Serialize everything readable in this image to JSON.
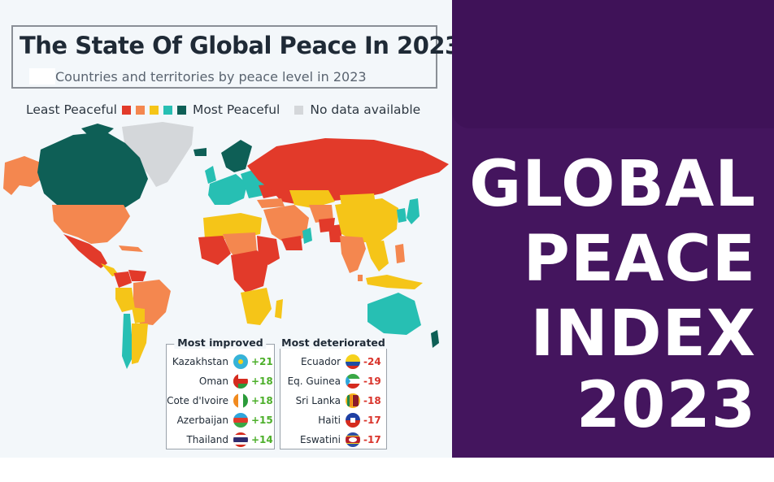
{
  "infographic": {
    "title": "The State Of Global Peace In 2023",
    "subtitle": "Countries and territories by peace level in 2023",
    "legend": {
      "least_label": "Least Peaceful",
      "most_label": "Most Peaceful",
      "no_data_label": "No data available",
      "scale_colors": [
        "#e23a2a",
        "#f4874f",
        "#f5c518",
        "#27bfb3",
        "#0e5f56"
      ],
      "no_data_color": "#d4d7da"
    },
    "most_improved": {
      "title": "Most improved",
      "rows": [
        {
          "country": "Kazakhstan",
          "change": "+21",
          "flag_icon": "kazakhstan-flag-icon"
        },
        {
          "country": "Oman",
          "change": "+18",
          "flag_icon": "oman-flag-icon"
        },
        {
          "country": "Cote d'Ivoire",
          "change": "+18",
          "flag_icon": "cote-divoire-flag-icon"
        },
        {
          "country": "Azerbaijan",
          "change": "+15",
          "flag_icon": "azerbaijan-flag-icon"
        },
        {
          "country": "Thailand",
          "change": "+14",
          "flag_icon": "thailand-flag-icon"
        }
      ]
    },
    "most_deteriorated": {
      "title": "Most deteriorated",
      "rows": [
        {
          "country": "Ecuador",
          "change": "-24",
          "flag_icon": "ecuador-flag-icon"
        },
        {
          "country": "Eq. Guinea",
          "change": "-19",
          "flag_icon": "eq-guinea-flag-icon"
        },
        {
          "country": "Sri Lanka",
          "change": "-18",
          "flag_icon": "sri-lanka-flag-icon"
        },
        {
          "country": "Haiti",
          "change": "-17",
          "flag_icon": "haiti-flag-icon"
        },
        {
          "country": "Eswatini",
          "change": "-17",
          "flag_icon": "eswatini-flag-icon"
        }
      ]
    }
  },
  "banner": {
    "lines": [
      "GLOBAL",
      "PEACE",
      "INDEX",
      "2023"
    ],
    "background_color": "#44155e",
    "text_color": "#ffffff"
  }
}
